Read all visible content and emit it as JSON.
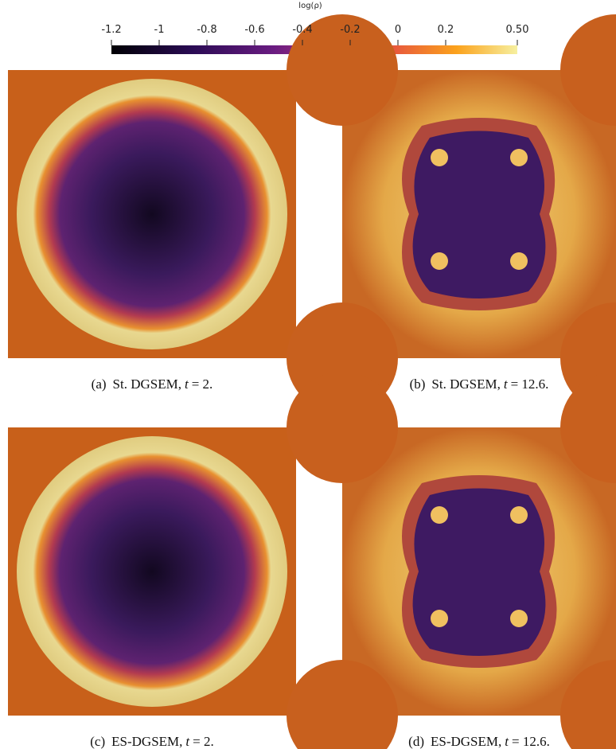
{
  "colorbar": {
    "label": "log(ρ)",
    "range": [
      -1.2,
      0.5
    ],
    "ticks": [
      {
        "value": -1.2,
        "label": "-1.2"
      },
      {
        "value": -1,
        "label": "-1"
      },
      {
        "value": -0.8,
        "label": "-0.8"
      },
      {
        "value": -0.6,
        "label": "-0.6"
      },
      {
        "value": -0.4,
        "label": "-0.4"
      },
      {
        "value": -0.2,
        "label": "-0.2"
      },
      {
        "value": 0,
        "label": "0"
      },
      {
        "value": 0.2,
        "label": "0.2"
      },
      {
        "value": 0.5,
        "label": "0.50"
      }
    ]
  },
  "panels": [
    {
      "label": "(a)",
      "method": "St. DGSEM,",
      "variable": "t",
      "rest": "= 2."
    },
    {
      "label": "(b)",
      "method": "St. DGSEM,",
      "variable": "t",
      "rest": "= 12.6."
    },
    {
      "label": "(c)",
      "method": "ES-DGSEM,",
      "variable": "t",
      "rest": "= 2."
    },
    {
      "label": "(d)",
      "method": "ES-DGSEM,",
      "variable": "t",
      "rest": "= 12.6."
    }
  ]
}
